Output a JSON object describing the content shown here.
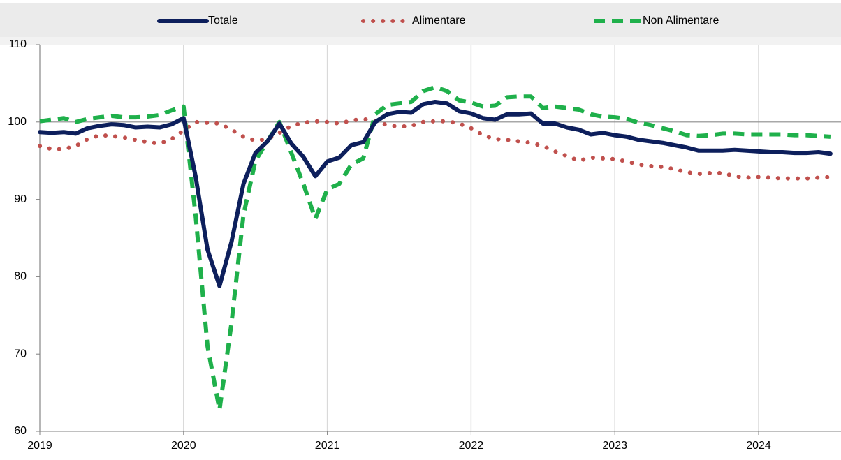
{
  "chart_data": {
    "type": "line",
    "categories": [
      "2019",
      null,
      null,
      null,
      null,
      null,
      null,
      null,
      null,
      null,
      null,
      null,
      "2020",
      null,
      null,
      null,
      null,
      null,
      null,
      null,
      null,
      null,
      null,
      null,
      "2021",
      null,
      null,
      null,
      null,
      null,
      null,
      null,
      null,
      null,
      null,
      null,
      "2022",
      null,
      null,
      null,
      null,
      null,
      null,
      null,
      null,
      null,
      null,
      null,
      "2023",
      null,
      null,
      null,
      null,
      null,
      null,
      null,
      null,
      null,
      null,
      null,
      "2024",
      null,
      null,
      null,
      null,
      null,
      null
    ],
    "series": [
      {
        "name": "Totale",
        "color": "#0d1f5c",
        "style": "solid",
        "values": [
          98.7,
          98.6,
          98.7,
          98.5,
          99.2,
          99.5,
          99.7,
          99.6,
          99.3,
          99.4,
          99.3,
          99.7,
          100.5,
          93.0,
          83.5,
          78.8,
          84.5,
          92.0,
          96.0,
          97.5,
          99.8,
          97.2,
          95.5,
          93.0,
          94.9,
          95.4,
          97.0,
          97.4,
          100.0,
          101.0,
          101.3,
          101.2,
          102.3,
          102.6,
          102.4,
          101.4,
          101.1,
          100.5,
          100.3,
          101.0,
          101.0,
          101.1,
          99.8,
          99.8,
          99.3,
          99.0,
          98.4,
          98.6,
          98.3,
          98.1,
          97.7,
          97.5,
          97.3,
          97.0,
          96.7,
          96.3,
          96.3,
          96.3,
          96.4,
          96.3,
          96.2,
          96.1,
          96.1,
          96.0,
          96.0,
          96.1,
          95.9
        ]
      },
      {
        "name": "Alimentare",
        "color": "#c0504d",
        "style": "dotted",
        "values": [
          96.9,
          96.5,
          96.5,
          96.9,
          97.8,
          98.3,
          98.2,
          98.0,
          97.7,
          97.4,
          97.2,
          97.8,
          98.9,
          100.0,
          99.9,
          99.8,
          99.0,
          98.1,
          97.6,
          97.8,
          98.6,
          99.5,
          99.9,
          100.1,
          100.0,
          99.8,
          100.2,
          100.4,
          100.1,
          99.6,
          99.4,
          99.5,
          100.0,
          100.1,
          100.1,
          99.8,
          99.2,
          98.3,
          97.8,
          97.7,
          97.5,
          97.3,
          96.9,
          96.2,
          95.6,
          95.0,
          95.4,
          95.3,
          95.2,
          94.9,
          94.5,
          94.3,
          94.2,
          93.9,
          93.5,
          93.3,
          93.4,
          93.4,
          93.0,
          92.8,
          92.9,
          92.8,
          92.7,
          92.7,
          92.7,
          92.8,
          92.9
        ]
      },
      {
        "name": "Non Alimentare",
        "color": "#1fb04b",
        "style": "dashed",
        "values": [
          100.1,
          100.3,
          100.5,
          100.0,
          100.4,
          100.6,
          100.8,
          100.6,
          100.6,
          100.7,
          100.9,
          101.5,
          102.0,
          88.0,
          71.0,
          62.8,
          74.0,
          88.0,
          95.0,
          97.5,
          100.0,
          96.0,
          92.0,
          87.5,
          91.3,
          92.0,
          94.5,
          95.3,
          101.0,
          102.2,
          102.4,
          102.6,
          104.0,
          104.5,
          104.0,
          102.8,
          102.5,
          102.0,
          102.1,
          103.2,
          103.3,
          103.3,
          101.8,
          102.0,
          101.8,
          101.6,
          101.0,
          100.7,
          100.6,
          100.4,
          99.9,
          99.6,
          99.2,
          98.8,
          98.3,
          98.2,
          98.3,
          98.5,
          98.5,
          98.4,
          98.4,
          98.4,
          98.4,
          98.3,
          98.3,
          98.2,
          98.1
        ]
      }
    ],
    "ylim": [
      60,
      110
    ],
    "yticks": [
      60,
      70,
      80,
      90,
      100,
      110
    ],
    "reference_line": 100,
    "grid": "x",
    "legend": "top"
  }
}
